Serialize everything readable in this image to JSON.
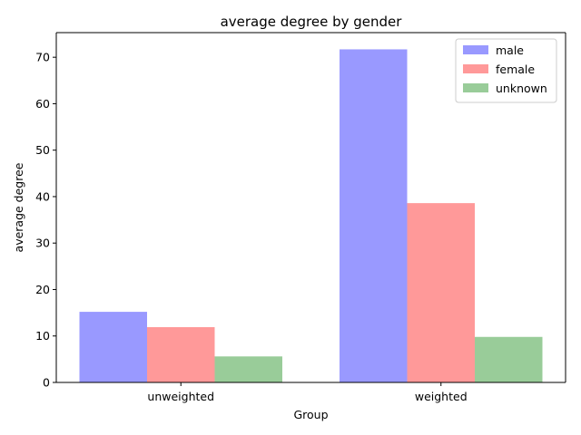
{
  "chart_data": {
    "type": "bar",
    "title": "average degree by gender",
    "xlabel": "Group",
    "ylabel": "average degree",
    "categories": [
      "unweighted",
      "weighted"
    ],
    "series": [
      {
        "name": "male",
        "values": [
          15.2,
          71.7
        ],
        "color": "#9999ff"
      },
      {
        "name": "female",
        "values": [
          11.9,
          38.6
        ],
        "color": "#ff9999"
      },
      {
        "name": "unknown",
        "values": [
          5.6,
          9.8
        ],
        "color": "#99cc99"
      }
    ],
    "ylim": [
      0,
      75.3
    ],
    "yticks": [
      0,
      10,
      20,
      30,
      40,
      50,
      60,
      70
    ],
    "grid": false,
    "legend": "top-right"
  }
}
